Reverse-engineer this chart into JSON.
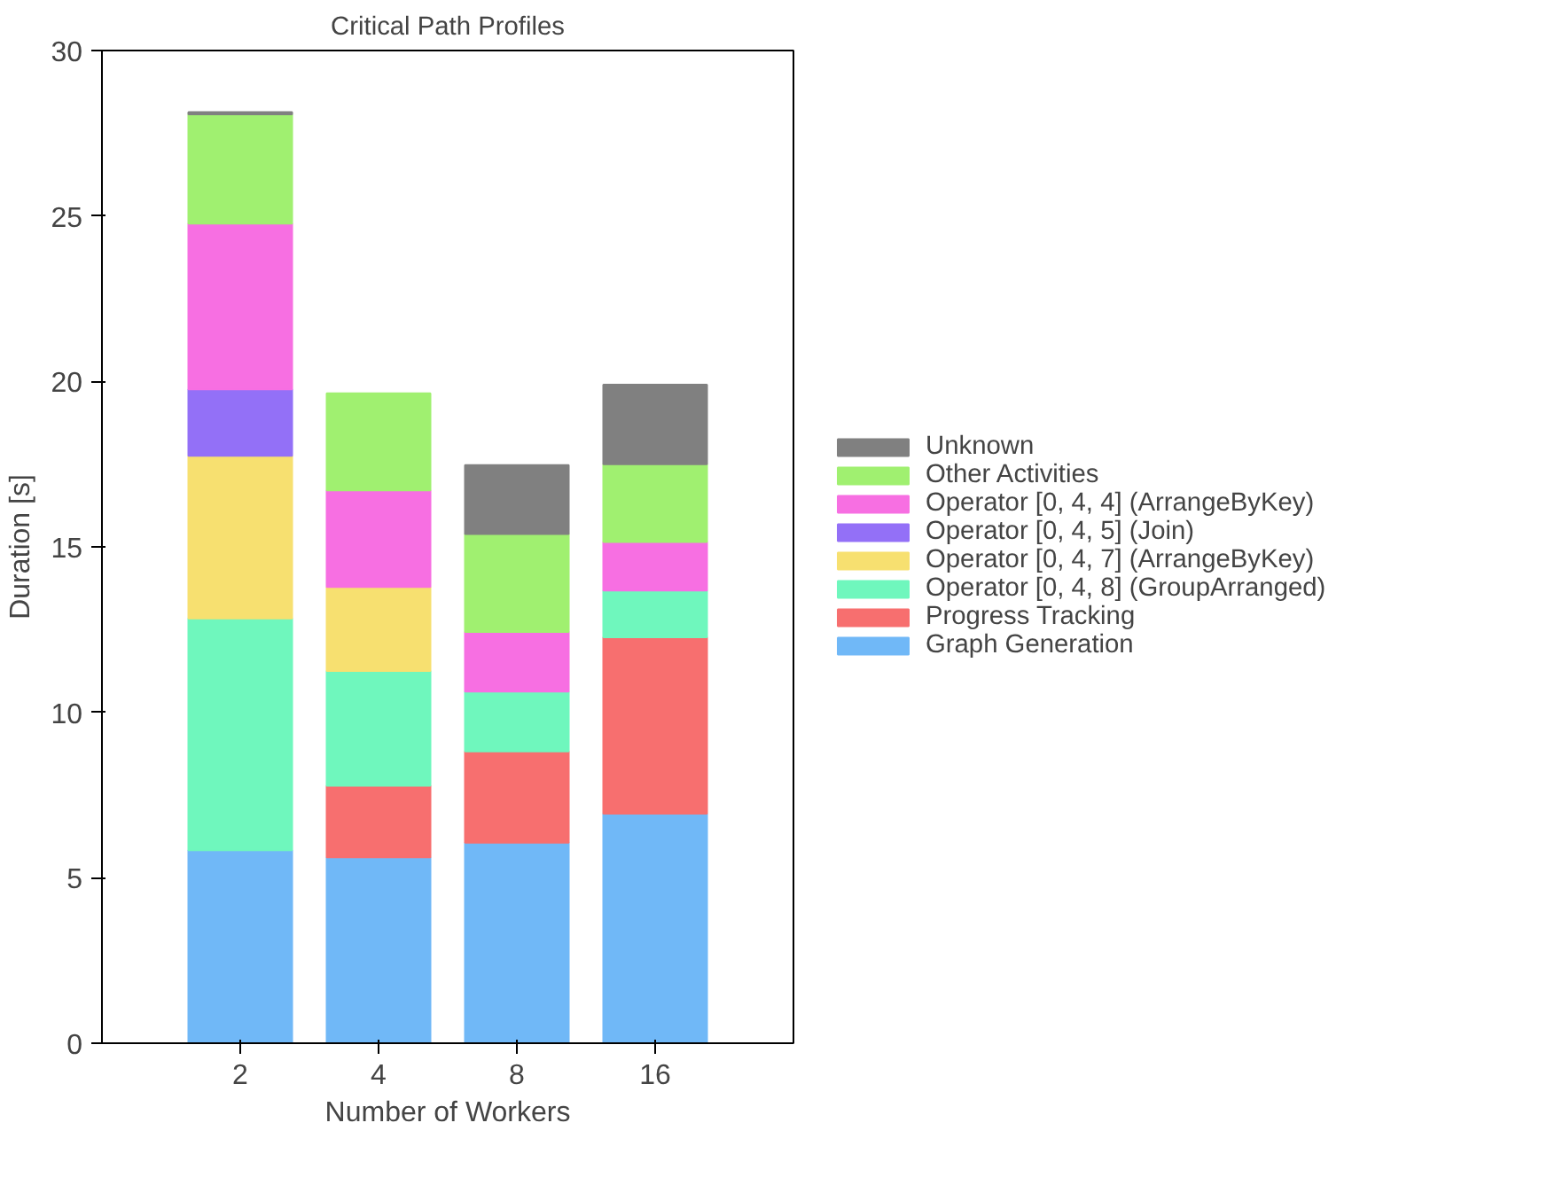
{
  "chart_data": {
    "type": "bar",
    "stacked": true,
    "title": "Critical Path Profiles",
    "xlabel": "Number of Workers",
    "ylabel": "Duration [s]",
    "categories": [
      "2",
      "4",
      "8",
      "16"
    ],
    "series": [
      {
        "name": "Graph Generation",
        "color": "#70b8f7",
        "values": [
          5.83,
          5.62,
          6.06,
          6.94
        ]
      },
      {
        "name": "Progress Tracking",
        "color": "#f76f6f",
        "values": [
          0,
          2.16,
          2.76,
          5.33
        ]
      },
      {
        "name": "Operator [0, 4, 8] (GroupArranged)",
        "color": "#6ff7bd",
        "values": [
          7.01,
          3.47,
          1.81,
          1.41
        ]
      },
      {
        "name": "Operator [0, 4, 7] (ArrangeByKey)",
        "color": "#f7e070",
        "values": [
          4.91,
          2.54,
          0,
          0
        ]
      },
      {
        "name": "Operator [0, 4, 5] (Join)",
        "color": "#9370f7",
        "values": [
          2.01,
          0,
          0,
          0
        ]
      },
      {
        "name": "Operator [0, 4, 4] (ArrangeByKey)",
        "color": "#f76fe2",
        "values": [
          5.01,
          2.92,
          1.8,
          1.47
        ]
      },
      {
        "name": "Other Activities",
        "color": "#a0f070",
        "values": [
          3.3,
          2.93,
          2.96,
          2.35
        ]
      },
      {
        "name": "Unknown",
        "color": "#808080",
        "values": [
          0.07,
          0,
          2.08,
          2.4
        ]
      }
    ],
    "ylim": [
      0,
      30
    ],
    "yticks": [
      0,
      5,
      10,
      15,
      20,
      25,
      30
    ],
    "grid": false,
    "legend": "right"
  }
}
